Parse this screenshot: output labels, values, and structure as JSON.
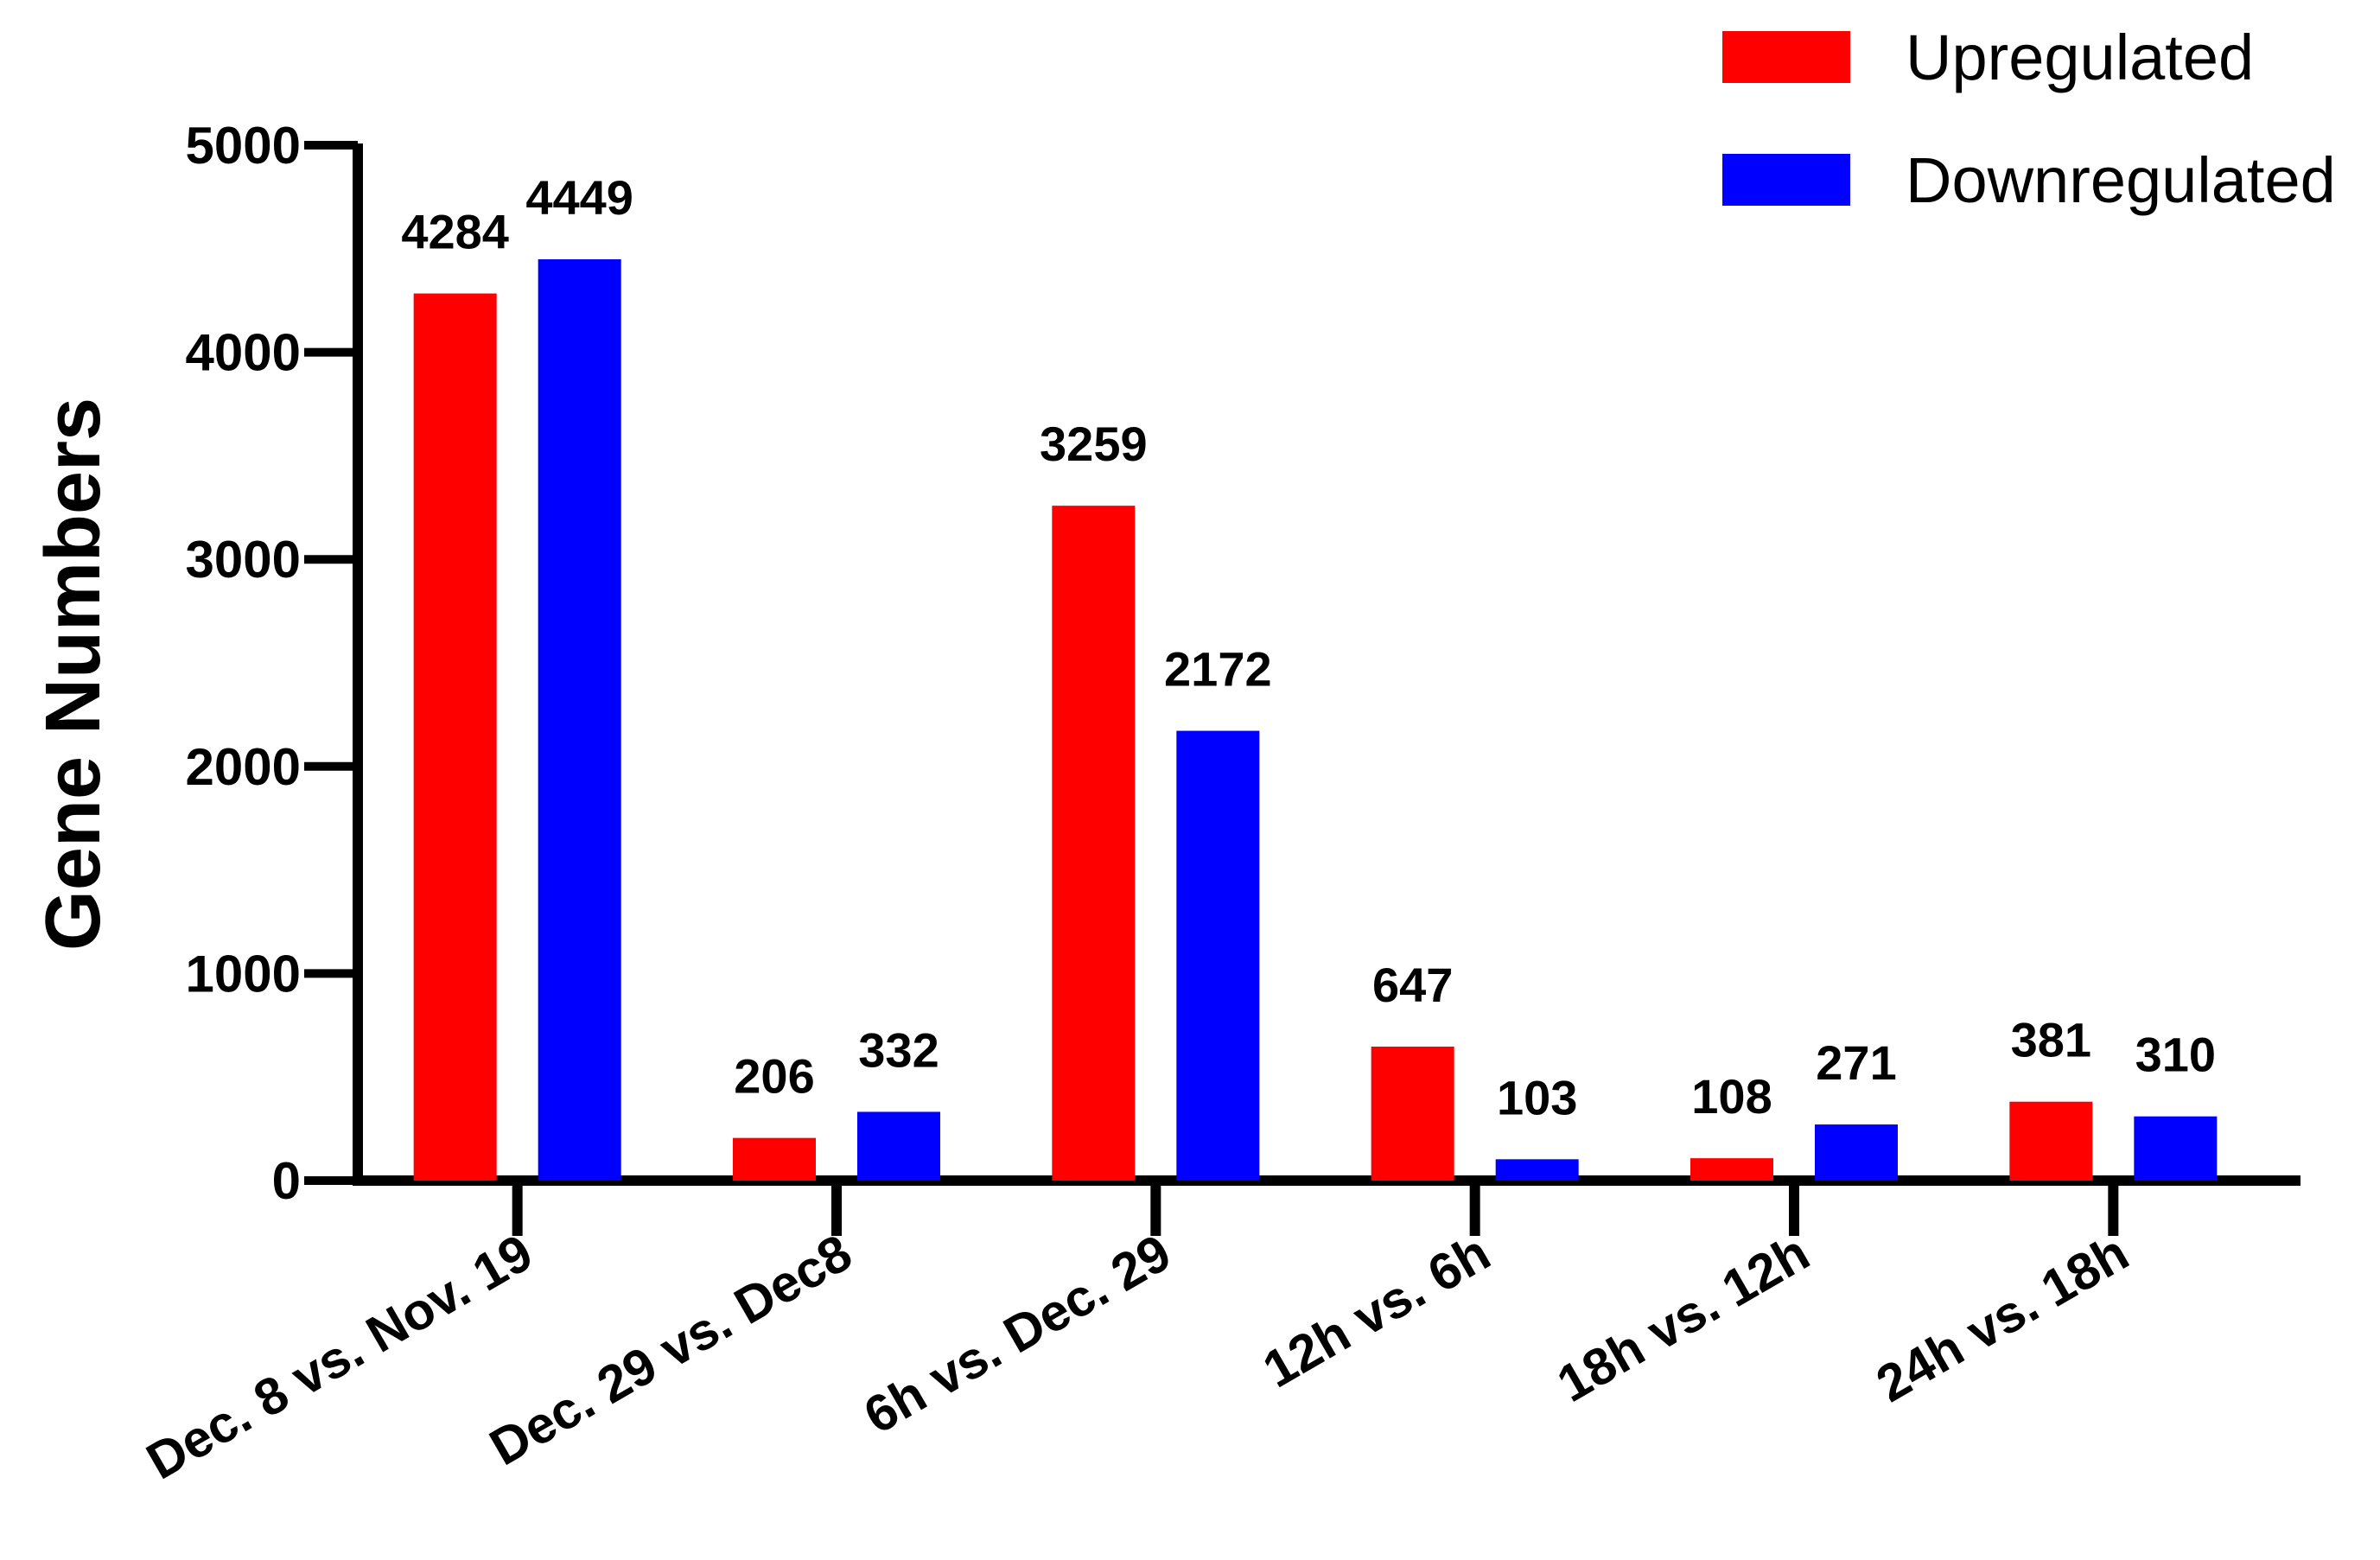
{
  "chart_data": {
    "type": "bar",
    "ylabel": "Gene Numbers",
    "ylim": [
      0,
      5000
    ],
    "yticks": [
      0,
      1000,
      2000,
      3000,
      4000,
      5000
    ],
    "grid": false,
    "legend_position": "top-right",
    "categories": [
      "Dec. 8 vs. Nov. 19",
      "Dec. 29 vs. Dec8",
      "6h vs. Dec. 29",
      "12h vs. 6h",
      "18h vs. 12h",
      "24h vs. 18h"
    ],
    "series": [
      {
        "name": "Upregulated",
        "color": "#ff0000",
        "values": [
          4284,
          206,
          3259,
          647,
          108,
          381
        ]
      },
      {
        "name": "Downregulated",
        "color": "#0000ff",
        "values": [
          4449,
          332,
          2172,
          103,
          271,
          310
        ]
      }
    ]
  }
}
